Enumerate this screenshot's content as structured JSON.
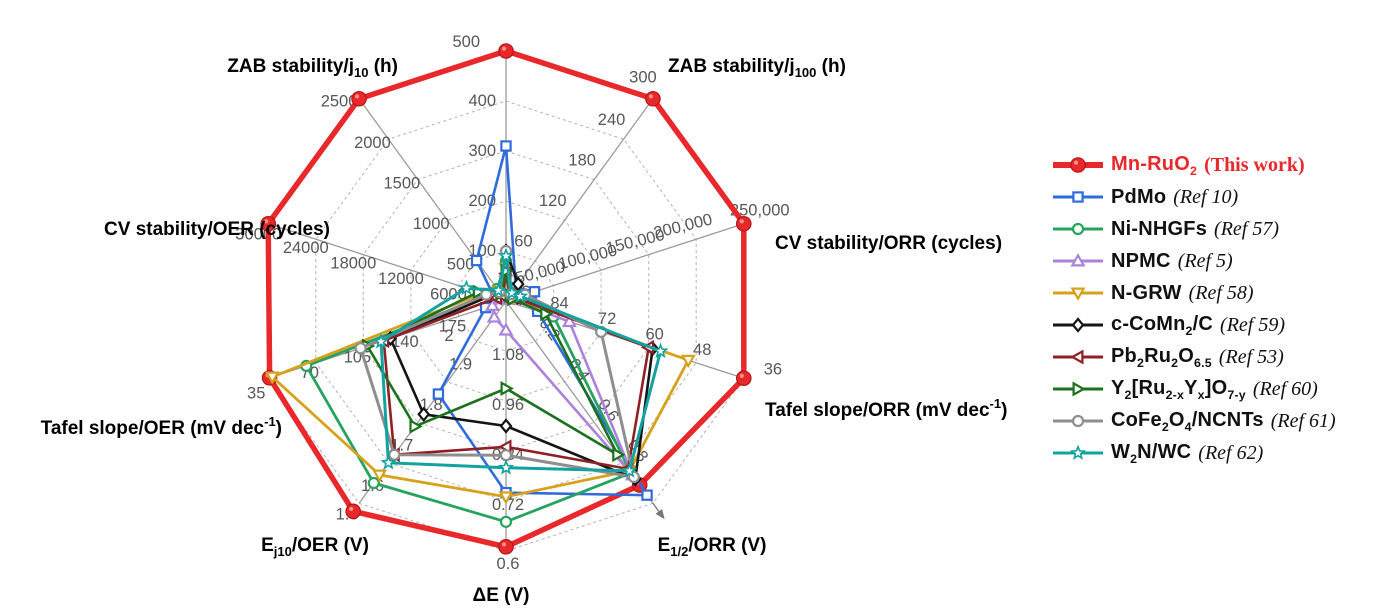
{
  "chart_data": {
    "type": "radar",
    "rings": 5,
    "grid": "dashed",
    "layout": {
      "grid_color": "#b3b3b3",
      "axis_color": "#9b9b9b",
      "tick_color": "#575757",
      "legend_position": "right"
    },
    "axes": [
      {
        "id": "axis-top",
        "label_parts": [],
        "center": 0,
        "outer": 500,
        "ticks": [
          "100",
          "200",
          "300",
          "400",
          "500"
        ]
      },
      {
        "id": "zab-j100",
        "label_parts": [
          {
            "t": "ZAB stability/j"
          },
          {
            "t": "100",
            "s": "sub"
          },
          {
            "t": " (h)"
          }
        ],
        "center": 0,
        "outer": 300,
        "ticks": [
          "60",
          "120",
          "180",
          "240",
          "300"
        ]
      },
      {
        "id": "cv-orr",
        "label_parts": [
          {
            "t": "CV stability/ORR (cycles)"
          }
        ],
        "center": 0,
        "outer": 250000,
        "ticks": [
          "50,000",
          "100,000",
          "150,000",
          "200,000",
          "250,000"
        ]
      },
      {
        "id": "tafel-orr",
        "label_parts": [
          {
            "t": "Tafel slope/ORR (mV dec"
          },
          {
            "t": "-1",
            "s": "sup"
          },
          {
            "t": ")"
          }
        ],
        "center": 96,
        "outer": 36,
        "ticks": [
          "84",
          "72",
          "60",
          "48",
          "36"
        ],
        "center_tick": "96"
      },
      {
        "id": "e12-orr",
        "label_parts": [
          {
            "t": "E"
          },
          {
            "t": "1/2",
            "s": "sub"
          },
          {
            "t": "/ORR (V)"
          }
        ],
        "center": 0,
        "outer": 1.0,
        "ticks": [
          "0.2",
          "0.4",
          "0.6",
          "0.8"
        ],
        "arrow": true
      },
      {
        "id": "delta-e",
        "label_parts": [
          {
            "t": "ΔE (V)"
          }
        ],
        "center": 1.2,
        "outer": 0.6,
        "ticks": [
          "1.08",
          "0.96",
          "0.84",
          "0.72",
          "0.6"
        ]
      },
      {
        "id": "ej10-oer",
        "label_parts": [
          {
            "t": "E"
          },
          {
            "t": "j10",
            "s": "sub"
          },
          {
            "t": "/OER (V)"
          }
        ],
        "center": 2.0,
        "outer": 1.5,
        "ticks": [
          "1.9",
          "1.8",
          "1.7",
          "1.6",
          "1.5"
        ],
        "center_tick": "2"
      },
      {
        "id": "tafel-oer",
        "label_parts": [
          {
            "t": "Tafel slope/OER (mV dec"
          },
          {
            "t": "-1",
            "s": "sup"
          },
          {
            "t": ")"
          }
        ],
        "center": 210,
        "outer": 35,
        "ticks": [
          "175",
          "140",
          "105",
          "70",
          "35"
        ]
      },
      {
        "id": "cv-oer",
        "label_parts": [
          {
            "t": "CV stability/OER (cycles)"
          }
        ],
        "center": 0,
        "outer": 30000,
        "ticks": [
          "6000",
          "12000",
          "18000",
          "24000",
          "30000"
        ]
      },
      {
        "id": "zab-j10",
        "label_parts": [
          {
            "t": "ZAB stability/j"
          },
          {
            "t": "10",
            "s": "sub"
          },
          {
            "t": " (h)"
          }
        ],
        "center": 0,
        "outer": 2500,
        "ticks": [
          "500",
          "1000",
          "1500",
          "2000",
          "2500"
        ]
      }
    ],
    "series": [
      {
        "id": "mn-ruo2",
        "name_parts": [
          {
            "t": "Mn-RuO"
          },
          {
            "t": "2",
            "s": "sub"
          }
        ],
        "ref": "(This work)",
        "this_work": true,
        "color": "#e8282b",
        "marker": "circle-filled",
        "line_width": 5.5,
        "values": [
          500,
          300,
          250000,
          36,
          0.91,
          0.61,
          1.48,
          36,
          30000,
          2500
        ]
      },
      {
        "id": "pdmo",
        "name_parts": [
          {
            "t": "PdMo"
          }
        ],
        "ref": "(Ref 10)",
        "this_work": false,
        "color": "#2f6bdb",
        "marker": "square",
        "line_width": 2.6,
        "values": [
          310,
          20,
          30000,
          88,
          0.96,
          0.74,
          1.77,
          195,
          1500,
          500
        ]
      },
      {
        "id": "ni-nhgfs",
        "name_parts": [
          {
            "t": "Ni-NHGFs"
          }
        ],
        "ref": "(Ref 57)",
        "this_work": false,
        "color": "#27a35f",
        "marker": "circle",
        "line_width": 2.8,
        "values": [
          80,
          12,
          8000,
          84,
          0.85,
          0.67,
          1.55,
          63,
          2200,
          150
        ]
      },
      {
        "id": "npmc",
        "name_parts": [
          {
            "t": "NPMC"
          }
        ],
        "ref": "(Ref 5)",
        "this_work": false,
        "color": "#ab82dc",
        "marker": "triangle-up",
        "line_width": 2.6,
        "values": [
          60,
          8,
          5000,
          80,
          0.86,
          1.13,
          1.96,
          200,
          800,
          40
        ]
      },
      {
        "id": "n-grw",
        "name_parts": [
          {
            "t": "N-GRW"
          }
        ],
        "ref": "(Ref 58)",
        "this_work": false,
        "color": "#d6a11c",
        "marker": "triangle-down",
        "line_width": 2.8,
        "values": [
          65,
          10,
          9000,
          50,
          0.84,
          0.73,
          1.57,
          38,
          3000,
          120
        ]
      },
      {
        "id": "c-comn2-c",
        "name_parts": [
          {
            "t": "c-CoMn"
          },
          {
            "t": "2",
            "s": "sub"
          },
          {
            "t": "/C"
          }
        ],
        "ref": "(Ref 59)",
        "this_work": false,
        "color": "#151515",
        "marker": "diamond",
        "line_width": 2.6,
        "values": [
          100,
          25,
          12000,
          59,
          0.88,
          0.9,
          1.72,
          125,
          2000,
          100
        ]
      },
      {
        "id": "pb2ru2o65",
        "name_parts": [
          {
            "t": "Pb"
          },
          {
            "t": "2",
            "s": "sub"
          },
          {
            "t": "Ru"
          },
          {
            "t": "2",
            "s": "sub"
          },
          {
            "t": "O"
          },
          {
            "t": "6.5",
            "s": "sub"
          }
        ],
        "ref": "(Ref 53)",
        "this_work": false,
        "color": "#8f2026",
        "marker": "triangle-left",
        "line_width": 2.6,
        "values": [
          55,
          8,
          10000,
          60,
          0.83,
          0.85,
          1.62,
          120,
          1200,
          60
        ]
      },
      {
        "id": "y2-ru2x-yx-o7y",
        "name_parts": [
          {
            "t": "Y"
          },
          {
            "t": "2",
            "s": "sub"
          },
          {
            "t": "[Ru"
          },
          {
            "t": "2-x",
            "s": "sub"
          },
          {
            "t": "Y"
          },
          {
            "t": "x",
            "s": "sub"
          },
          {
            "t": "]O"
          },
          {
            "t": "7-y",
            "s": "sub"
          }
        ],
        "ref": "(Ref 60)",
        "this_work": false,
        "color": "#1c711c",
        "marker": "triangle-right",
        "line_width": 2.6,
        "values": [
          60,
          8,
          7000,
          86,
          0.76,
          0.99,
          1.69,
          108,
          3500,
          90
        ]
      },
      {
        "id": "cofe2o4-ncnts",
        "name_parts": [
          {
            "t": "CoFe"
          },
          {
            "t": "2",
            "s": "sub"
          },
          {
            "t": "O"
          },
          {
            "t": "4",
            "s": "sub"
          },
          {
            "t": "/NCNTs"
          }
        ],
        "ref": "(Ref 61)",
        "this_work": false,
        "color": "#8e8e8e",
        "marker": "circle",
        "line_width": 3.0,
        "values": [
          100,
          10,
          20000,
          72,
          0.87,
          0.83,
          1.62,
          103,
          2500,
          110
        ]
      },
      {
        "id": "w2n-wc",
        "name_parts": [
          {
            "t": "W"
          },
          {
            "t": "2",
            "s": "sub"
          },
          {
            "t": "N/WC"
          }
        ],
        "ref": "(Ref 62)",
        "this_work": false,
        "color": "#12a2a0",
        "marker": "star",
        "line_width": 3.0,
        "values": [
          90,
          12,
          15000,
          57,
          0.84,
          0.8,
          1.6,
          118,
          5000,
          130
        ]
      }
    ]
  }
}
